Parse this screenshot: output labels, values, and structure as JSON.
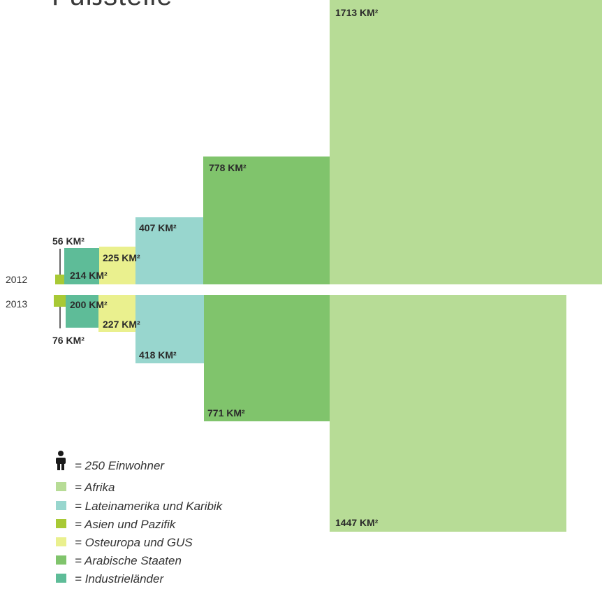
{
  "title": "Fußstelle",
  "colors": {
    "afrika": "#b7dc96",
    "lateinamerika": "#98d6ce",
    "asien": "#a8c935",
    "osteuropa": "#eaf08e",
    "arabisch": "#80c46c",
    "industrie": "#5ebc98"
  },
  "years": [
    "2012",
    "2013"
  ],
  "chart_data": {
    "type": "bar",
    "unit": "KM²",
    "categories": [
      "Afrika",
      "Lateinamerika und Karibik",
      "Asien und Pazifik",
      "Osteuropa und GUS",
      "Arabische Staaten",
      "Industrieländer"
    ],
    "series": [
      {
        "name": "2012",
        "values": [
          1713,
          407,
          56,
          225,
          778,
          214
        ]
      },
      {
        "name": "2013",
        "values": [
          1447,
          418,
          76,
          227,
          771,
          200
        ]
      }
    ]
  },
  "labels": {
    "y2012": {
      "afrika": "1713 KM²",
      "arabisch": "778 KM²",
      "lateinamerika": "407 KM²",
      "asien": "56 KM²",
      "osteuropa": "225 KM²",
      "industrie": "214 KM²"
    },
    "y2013": {
      "afrika": "1447 KM²",
      "arabisch": "771 KM²",
      "lateinamerika": "418 KM²",
      "asien": "76 KM²",
      "osteuropa": "227 KM²",
      "industrie": "200 KM²"
    }
  },
  "legend": {
    "person": {
      "icon": "person-icon",
      "text": "= 250 Einwohner"
    },
    "items": [
      {
        "color_key": "afrika",
        "text": "= Afrika"
      },
      {
        "color_key": "lateinamerika",
        "text": "= Lateinamerika und Karibik"
      },
      {
        "color_key": "asien",
        "text": "= Asien und Pazifik"
      },
      {
        "color_key": "osteuropa",
        "text": "= Osteuropa und GUS"
      },
      {
        "color_key": "arabisch",
        "text": "= Arabische Staaten"
      },
      {
        "color_key": "industrie",
        "text": "= Industrieländer"
      }
    ]
  }
}
